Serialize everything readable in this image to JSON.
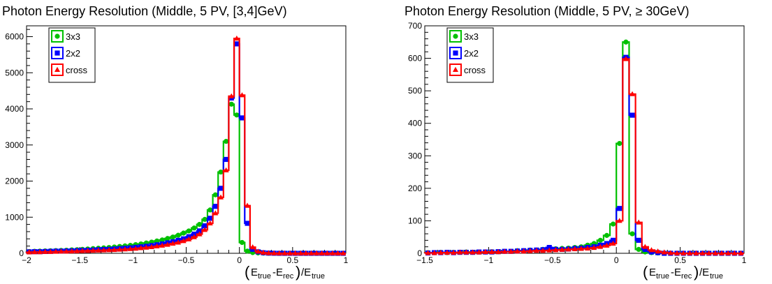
{
  "chart_data": [
    {
      "type": "line",
      "title": "Photon Energy Resolution (Middle, 5 PV, [3,4]GeV)",
      "xlabel": "(E_true-E_rec)/E_true",
      "ylabel": "",
      "xlim": [
        -2,
        1
      ],
      "ylim": [
        0,
        6300
      ],
      "x_ticks": [
        -2,
        -1.5,
        -1,
        -0.5,
        0,
        0.5,
        1
      ],
      "x_tick_labels": [
        "−2",
        "−1.5",
        "−1",
        "−0.5",
        "0",
        "0.5",
        "1"
      ],
      "y_ticks": [
        0,
        1000,
        2000,
        3000,
        4000,
        5000,
        6000
      ],
      "y_tick_labels": [
        "0",
        "1000",
        "2000",
        "3000",
        "4000",
        "5000",
        "6000"
      ],
      "grid": false,
      "legend_position": "top-left",
      "bin_edges": [
        -2,
        -1.95,
        -1.9,
        -1.85,
        -1.8,
        -1.75,
        -1.7,
        -1.65,
        -1.6,
        -1.55,
        -1.5,
        -1.45,
        -1.4,
        -1.35,
        -1.3,
        -1.25,
        -1.2,
        -1.15,
        -1.1,
        -1.05,
        -1,
        -0.95,
        -0.9,
        -0.85,
        -0.8,
        -0.75,
        -0.7,
        -0.65,
        -0.6,
        -0.55,
        -0.5,
        -0.45,
        -0.4,
        -0.35,
        -0.3,
        -0.25,
        -0.2,
        -0.15,
        -0.1,
        -0.05,
        0,
        0.05,
        0.1,
        0.15,
        0.2,
        0.25,
        0.3,
        0.35,
        0.4,
        0.45,
        0.5,
        0.55,
        0.6,
        0.65,
        0.7,
        0.75,
        0.8,
        0.85,
        0.9,
        0.95,
        1
      ],
      "series": [
        {
          "name": "3x3",
          "color": "#00c000",
          "marker": "circle",
          "values": [
            50,
            55,
            60,
            65,
            70,
            75,
            80,
            85,
            95,
            100,
            110,
            120,
            130,
            140,
            150,
            160,
            175,
            190,
            205,
            220,
            240,
            260,
            285,
            310,
            340,
            370,
            410,
            450,
            500,
            560,
            620,
            700,
            800,
            940,
            1200,
            1620,
            2250,
            3100,
            4130,
            3830,
            300,
            60,
            20,
            10,
            5,
            2,
            0,
            0,
            0,
            0,
            0,
            0,
            0,
            0,
            0,
            0,
            0,
            0,
            0,
            0
          ]
        },
        {
          "name": "2x2",
          "color": "#0000ff",
          "marker": "square",
          "values": [
            40,
            45,
            45,
            50,
            55,
            60,
            60,
            65,
            70,
            75,
            80,
            85,
            90,
            100,
            105,
            110,
            120,
            130,
            140,
            150,
            165,
            180,
            195,
            215,
            235,
            260,
            290,
            320,
            360,
            400,
            460,
            530,
            620,
            760,
            970,
            1300,
            1800,
            2600,
            4300,
            5800,
            3750,
            830,
            110,
            40,
            15,
            5,
            2,
            0,
            0,
            0,
            0,
            0,
            0,
            0,
            0,
            0,
            0,
            0,
            0,
            0
          ]
        },
        {
          "name": "cross",
          "color": "#ff0000",
          "marker": "triangle",
          "values": [
            30,
            35,
            35,
            40,
            40,
            45,
            50,
            50,
            55,
            60,
            65,
            70,
            75,
            80,
            85,
            90,
            95,
            105,
            110,
            120,
            130,
            145,
            160,
            175,
            195,
            215,
            240,
            270,
            300,
            340,
            390,
            450,
            530,
            650,
            830,
            1110,
            1550,
            2300,
            4350,
            5950,
            4380,
            1320,
            170,
            50,
            20,
            8,
            3,
            0,
            0,
            0,
            0,
            0,
            0,
            0,
            0,
            0,
            0,
            0,
            0,
            0
          ]
        }
      ]
    },
    {
      "type": "line",
      "title": "Photon Energy Resolution (Middle, 5 PV, ≥ 30GeV)",
      "xlabel": "(E_true-E_rec)/E_true",
      "ylabel": "",
      "xlim": [
        -1.5,
        1
      ],
      "ylim": [
        0,
        700
      ],
      "x_ticks": [
        -1.5,
        -1,
        -0.5,
        0,
        0.5,
        1
      ],
      "x_tick_labels": [
        "−1.5",
        "−1",
        "−0.5",
        "0",
        "0.5",
        "1"
      ],
      "y_ticks": [
        0,
        100,
        200,
        300,
        400,
        500,
        600,
        700
      ],
      "y_tick_labels": [
        "0",
        "100",
        "200",
        "300",
        "400",
        "500",
        "600",
        "700"
      ],
      "grid": false,
      "legend_position": "top-left",
      "bin_edges": [
        -1.5,
        -1.45,
        -1.4,
        -1.35,
        -1.3,
        -1.25,
        -1.2,
        -1.15,
        -1.1,
        -1.05,
        -1,
        -0.95,
        -0.9,
        -0.85,
        -0.8,
        -0.75,
        -0.7,
        -0.65,
        -0.6,
        -0.55,
        -0.5,
        -0.45,
        -0.4,
        -0.35,
        -0.3,
        -0.25,
        -0.2,
        -0.15,
        -0.1,
        -0.05,
        0,
        0.05,
        0.1,
        0.15,
        0.2,
        0.25,
        0.3,
        0.35,
        0.4,
        0.45,
        0.5,
        0.55,
        0.6,
        0.65,
        0.7,
        0.75,
        0.8,
        0.85,
        0.9,
        0.95,
        1
      ],
      "series": [
        {
          "name": "3x3",
          "color": "#00c000",
          "marker": "circle",
          "values": [
            2,
            2,
            3,
            2,
            3,
            3,
            4,
            3,
            4,
            4,
            5,
            5,
            6,
            6,
            8,
            8,
            10,
            10,
            12,
            12,
            14,
            15,
            16,
            18,
            20,
            25,
            30,
            40,
            55,
            90,
            338,
            650,
            60,
            12,
            4,
            2,
            1,
            0,
            0,
            0,
            0,
            0,
            0,
            0,
            0,
            0,
            0,
            0,
            0,
            0
          ]
        },
        {
          "name": "2x2",
          "color": "#0000ff",
          "marker": "square",
          "values": [
            1,
            2,
            2,
            3,
            2,
            3,
            3,
            3,
            4,
            4,
            4,
            5,
            6,
            6,
            7,
            8,
            9,
            10,
            11,
            18,
            12,
            12,
            13,
            15,
            16,
            18,
            20,
            25,
            30,
            40,
            138,
            603,
            425,
            40,
            12,
            4,
            2,
            0,
            0,
            0,
            0,
            0,
            0,
            0,
            0,
            0,
            0,
            0,
            0,
            0
          ]
        },
        {
          "name": "cross",
          "color": "#ff0000",
          "marker": "triangle",
          "values": [
            1,
            1,
            2,
            2,
            2,
            3,
            3,
            3,
            3,
            4,
            4,
            4,
            5,
            5,
            6,
            6,
            7,
            8,
            8,
            9,
            10,
            11,
            12,
            13,
            14,
            15,
            17,
            20,
            24,
            30,
            100,
            598,
            490,
            95,
            20,
            10,
            6,
            3,
            1,
            0,
            0,
            0,
            0,
            0,
            0,
            0,
            0,
            0,
            0,
            0
          ]
        }
      ]
    }
  ]
}
